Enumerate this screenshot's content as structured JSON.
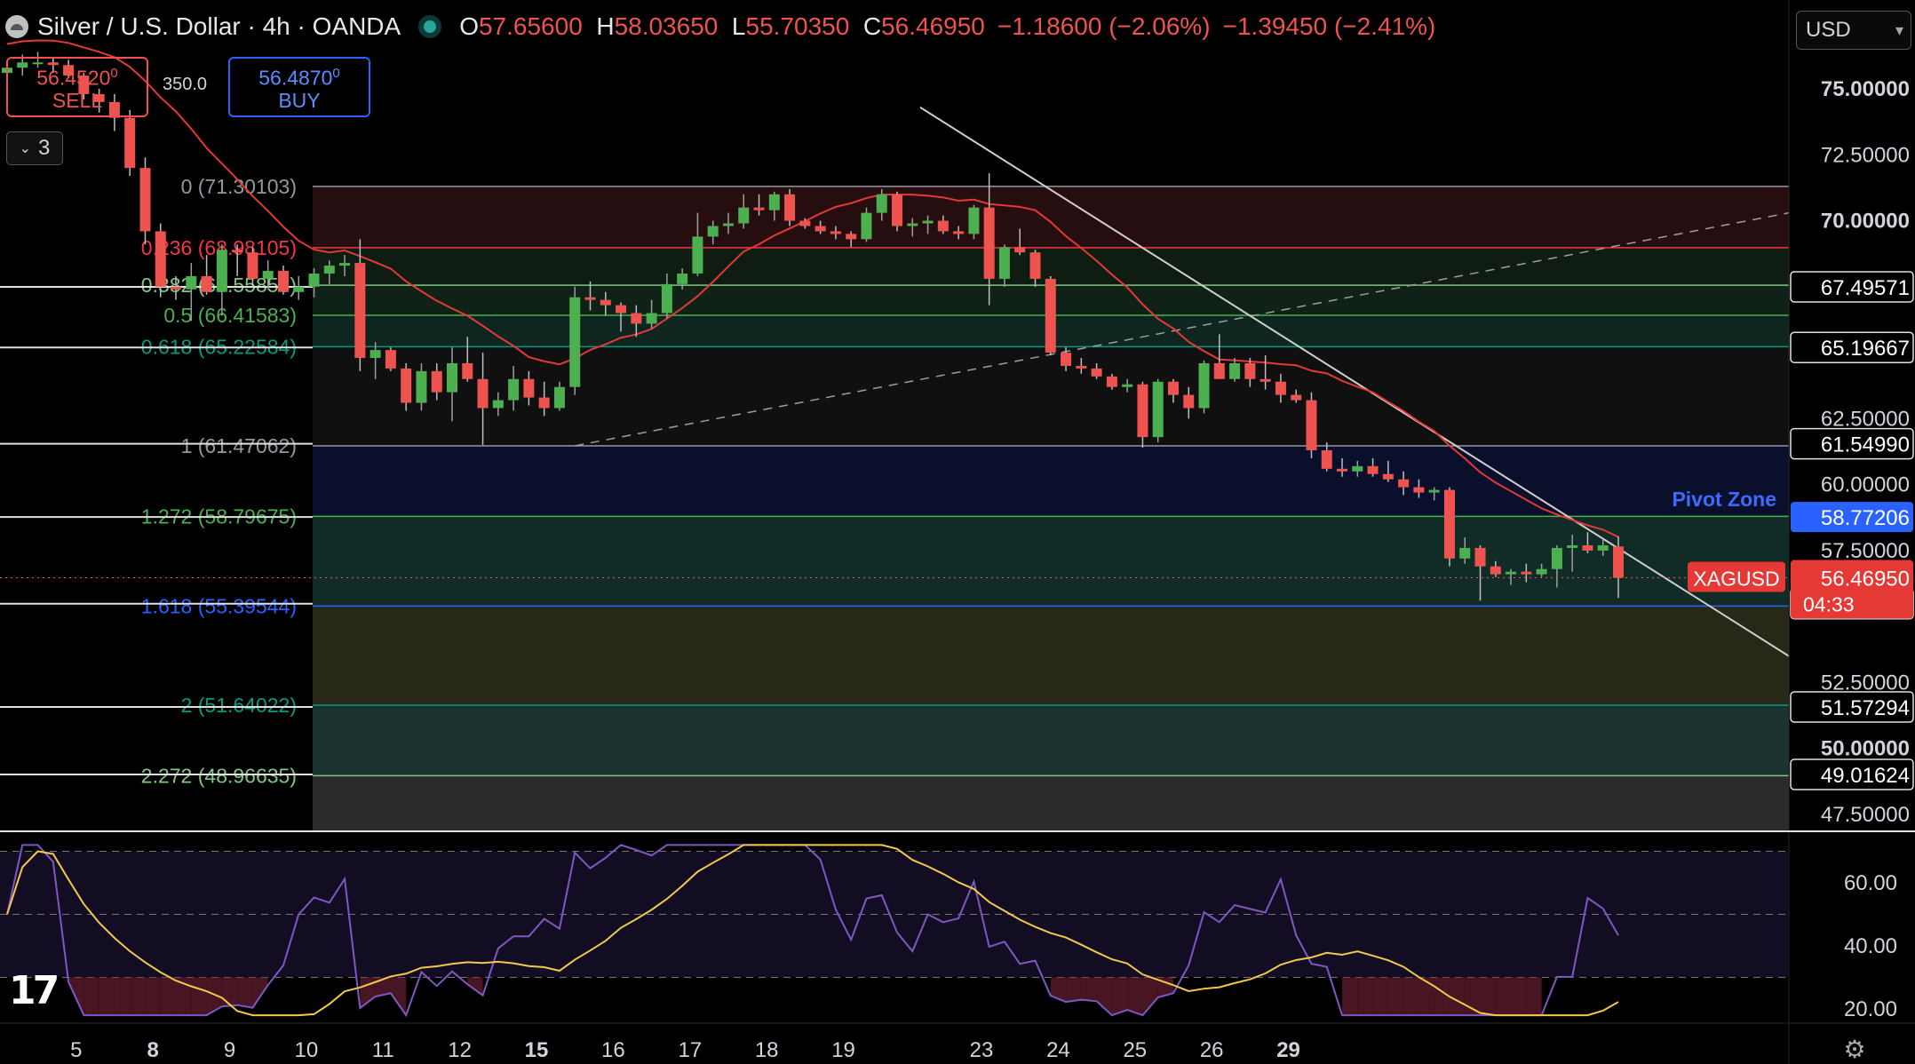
{
  "header": {
    "title": "Silver / U.S. Dollar · 4h · OANDA",
    "open": "57.65600",
    "high": "58.03650",
    "low": "55.70350",
    "close": "56.46950",
    "change": "−1.18600 (−2.06%)",
    "change2": "−1.39450 (−2.41%)"
  },
  "trade": {
    "sell_price": "56.4520",
    "sell_sup": "0",
    "sell_label": "SELL",
    "buy_price": "56.4870",
    "buy_sup": "0",
    "buy_label": "BUY",
    "spread": "350.0"
  },
  "collapse_count": "3",
  "currency": "USD",
  "colors": {
    "up": "#26a69a",
    "up_body": "#4caf50",
    "down": "#ef5350",
    "fib_line": "#c9c9c9",
    "ma": "#e53935",
    "rsi": "#7e57c2",
    "rsi_ma": "#f2c94c",
    "trend": "#cfcfcf"
  },
  "chart_data": {
    "type": "candlestick",
    "instrument": "XAGUSD",
    "last_price": "56.46950",
    "countdown": "04:33",
    "y_range": [
      46.0,
      77.0
    ],
    "y_ticks": [
      "75.00000",
      "72.50000",
      "70.00000",
      "62.50000",
      "60.00000",
      "57.50000",
      "52.50000",
      "50.00000",
      "47.50000"
    ],
    "y_tick_values": [
      75,
      72.5,
      70,
      62.5,
      60,
      57.5,
      52.5,
      50,
      47.5
    ],
    "level_labels": [
      {
        "label": "67.49571",
        "value": 67.49571
      },
      {
        "label": "65.19667",
        "value": 65.19667
      },
      {
        "label": "61.54990",
        "value": 61.5499
      },
      {
        "label": "58.77206",
        "value": 58.77206
      },
      {
        "label": "55.48382",
        "value": 55.48382
      },
      {
        "label": "51.57294",
        "value": 51.57294
      },
      {
        "label": "49.01624",
        "value": 49.01624
      }
    ],
    "fib_levels": [
      {
        "label": "0 (71.30103)",
        "value": 71.30103,
        "color": "#9598a1"
      },
      {
        "label": "0.236 (68.98105)",
        "value": 68.98105,
        "color": "#f23645"
      },
      {
        "label": "0.382 (67.55858)",
        "value": 67.55858,
        "color": "#81c784"
      },
      {
        "label": "0.5 (66.41583)",
        "value": 66.41583,
        "color": "#4caf50"
      },
      {
        "label": "0.618 (65.22584)",
        "value": 65.22584,
        "color": "#089981"
      },
      {
        "label": "1 (61.47062)",
        "value": 61.47062,
        "color": "#9598a1"
      },
      {
        "label": "1.272 (58.79675)",
        "value": 58.79675,
        "color": "#4caf50"
      },
      {
        "label": "1.618 (55.39544)",
        "value": 55.39544,
        "color": "#2962ff"
      },
      {
        "label": "2 (51.64022)",
        "value": 51.64022,
        "color": "#089981"
      },
      {
        "label": "2.272 (48.96635)",
        "value": 48.96635,
        "color": "#81c784"
      }
    ],
    "pivot_zone_label": "Pivot Zone",
    "x_labels": [
      "5",
      "8",
      "9",
      "10",
      "11",
      "12",
      "15",
      "16",
      "17",
      "18",
      "19",
      "23",
      "24",
      "25",
      "26",
      "29"
    ],
    "x_label_bold": [
      "8",
      "15",
      "29"
    ],
    "x_label_index": [
      4.5,
      9.5,
      14.5,
      19.5,
      24.5,
      29.5,
      34.5,
      39.5,
      44.5,
      49.5,
      54.5,
      63.5,
      68.5,
      73.5,
      78.5,
      83.5
    ],
    "candles": [
      [
        66.8,
        66.9,
        66.4,
        66.6
      ],
      [
        66.6,
        66.9,
        66.5,
        66.8
      ],
      [
        66.8,
        67.1,
        66.5,
        66.8
      ],
      [
        66.8,
        67.0,
        66.6,
        66.9
      ],
      [
        66.9,
        67.0,
        66.0,
        66.2
      ],
      [
        66.2,
        66.4,
        65.6,
        65.7
      ],
      [
        65.7,
        66.3,
        64.6,
        65.0
      ],
      [
        65.0,
        65.3,
        64.1,
        64.4
      ],
      [
        64.4,
        64.5,
        62.2,
        62.6
      ],
      [
        62.6,
        62.9,
        60.5,
        60.9
      ],
      [
        60.9,
        62.0,
        59.0,
        59.5
      ],
      [
        59.5,
        60.3,
        58.4,
        58.7
      ],
      [
        58.7,
        58.9,
        57.7,
        58.3
      ],
      [
        58.3,
        59.5,
        58.0,
        59.4
      ],
      [
        59.4,
        59.7,
        59.3,
        59.5
      ],
      [
        59.5,
        59.6,
        59.1,
        59.2
      ],
      [
        59.2,
        59.5,
        58.8,
        59.0
      ],
      [
        59.0,
        59.5,
        58.7,
        59.1
      ],
      [
        59.1,
        59.4,
        58.8,
        59.3
      ],
      [
        59.3,
        59.6,
        59.1,
        59.5
      ],
      [
        59.5,
        59.5,
        56.3,
        56.5
      ],
      [
        56.5,
        56.7,
        56.0,
        56.2
      ],
      [
        56.2,
        56.6,
        55.8,
        56.1
      ],
      [
        56.1,
        56.3,
        55.8,
        55.9
      ],
      [
        55.9,
        56.7,
        55.8,
        56.6
      ],
      [
        56.6,
        57.8,
        55.9,
        57.3
      ]
    ],
    "history_candles": [
      [
        75.6,
        75.9,
        75.2,
        75.8
      ],
      [
        75.8,
        76.3,
        75.5,
        76.0
      ],
      [
        76.0,
        76.4,
        75.8,
        76.0
      ],
      [
        76.0,
        76.2,
        75.6,
        75.9
      ],
      [
        75.9,
        76.1,
        75.4,
        75.5
      ],
      [
        75.5,
        75.6,
        74.6,
        74.8
      ],
      [
        74.8,
        75.0,
        74.1,
        74.5
      ],
      [
        74.5,
        74.8,
        73.4,
        73.9
      ],
      [
        73.9,
        74.2,
        71.7,
        72.0
      ],
      [
        72.0,
        72.4,
        69.1,
        69.6
      ],
      [
        69.6,
        69.9,
        67.1,
        67.5
      ],
      [
        67.5,
        67.9,
        67.0,
        67.4
      ],
      [
        67.4,
        68.4,
        66.2,
        67.9
      ],
      [
        67.9,
        68.7,
        67.2,
        67.3
      ],
      [
        67.3,
        69.1,
        66.4,
        68.9
      ],
      [
        68.9,
        69.1,
        67.9,
        68.8
      ],
      [
        68.8,
        69.0,
        67.5,
        67.8
      ],
      [
        67.8,
        68.5,
        67.4,
        68.1
      ],
      [
        68.1,
        68.3,
        67.2,
        67.3
      ],
      [
        67.3,
        67.9,
        67.0,
        67.5
      ],
      [
        67.5,
        68.2,
        67.1,
        68.0
      ],
      [
        68.0,
        68.5,
        67.6,
        68.3
      ],
      [
        68.3,
        68.7,
        67.9,
        68.4
      ],
      [
        68.4,
        69.3,
        64.3,
        64.8
      ],
      [
        64.8,
        65.4,
        64.0,
        65.1
      ],
      [
        65.1,
        65.2,
        64.3,
        64.4
      ],
      [
        64.4,
        64.6,
        62.8,
        63.1
      ],
      [
        63.1,
        64.6,
        62.8,
        64.3
      ],
      [
        64.3,
        64.6,
        63.2,
        63.5
      ],
      [
        63.5,
        65.2,
        62.4,
        64.6
      ],
      [
        64.6,
        65.6,
        63.9,
        64.0
      ],
      [
        64.0,
        65.0,
        61.5,
        62.9
      ],
      [
        62.9,
        63.5,
        62.6,
        63.2
      ],
      [
        63.2,
        64.5,
        62.8,
        64.0
      ],
      [
        64.0,
        64.3,
        63.0,
        63.3
      ],
      [
        63.3,
        63.9,
        62.6,
        62.9
      ],
      [
        62.9,
        63.9,
        62.8,
        63.7
      ],
      [
        63.7,
        67.5,
        63.4,
        67.1
      ],
      [
        67.1,
        67.7,
        66.6,
        67.0
      ],
      [
        67.0,
        67.3,
        66.4,
        66.8
      ],
      [
        66.8,
        66.9,
        65.8,
        66.5
      ],
      [
        66.5,
        66.8,
        65.6,
        66.1
      ],
      [
        66.1,
        67.0,
        65.9,
        66.5
      ],
      [
        66.5,
        68.0,
        66.3,
        67.6
      ],
      [
        67.6,
        68.2,
        67.4,
        68.0
      ],
      [
        68.0,
        70.3,
        67.9,
        69.4
      ],
      [
        69.4,
        70.0,
        69.1,
        69.8
      ],
      [
        69.8,
        70.3,
        69.5,
        69.9
      ],
      [
        69.9,
        71.0,
        69.7,
        70.5
      ],
      [
        70.5,
        71.0,
        70.2,
        70.4
      ],
      [
        70.4,
        71.1,
        70.0,
        71.0
      ],
      [
        71.0,
        71.2,
        69.8,
        70.0
      ],
      [
        70.0,
        70.1,
        69.7,
        69.8
      ],
      [
        69.8,
        70.0,
        69.5,
        69.6
      ],
      [
        69.6,
        69.8,
        69.3,
        69.5
      ],
      [
        69.5,
        69.6,
        69.0,
        69.3
      ],
      [
        69.3,
        70.5,
        69.2,
        70.3
      ],
      [
        70.3,
        71.2,
        70.0,
        71.0
      ],
      [
        71.0,
        71.1,
        69.6,
        69.8
      ],
      [
        69.8,
        70.1,
        69.4,
        69.9
      ],
      [
        69.9,
        70.2,
        69.5,
        70.0
      ],
      [
        70.0,
        70.2,
        69.5,
        69.6
      ],
      [
        69.6,
        69.8,
        69.3,
        69.5
      ],
      [
        69.5,
        70.6,
        69.3,
        70.5
      ],
      [
        70.5,
        71.8,
        66.8,
        67.8
      ],
      [
        67.8,
        69.1,
        67.5,
        69.0
      ],
      [
        69.0,
        69.7,
        68.7,
        68.8
      ],
      [
        68.8,
        68.9,
        67.5,
        67.8
      ],
      [
        67.8,
        67.9,
        64.9,
        65.0
      ],
      [
        65.0,
        65.2,
        64.3,
        64.5
      ],
      [
        64.5,
        64.8,
        64.2,
        64.4
      ],
      [
        64.4,
        64.6,
        64.0,
        64.1
      ],
      [
        64.1,
        64.2,
        63.6,
        63.7
      ],
      [
        63.7,
        64.0,
        63.5,
        63.8
      ],
      [
        63.8,
        63.9,
        61.4,
        61.8
      ],
      [
        61.8,
        64.0,
        61.6,
        63.9
      ],
      [
        63.9,
        64.0,
        63.1,
        63.4
      ],
      [
        63.4,
        63.7,
        62.5,
        62.9
      ],
      [
        62.9,
        64.7,
        62.7,
        64.6
      ],
      [
        64.6,
        65.7,
        64.2,
        64.0
      ],
      [
        64.0,
        64.8,
        63.9,
        64.6
      ],
      [
        64.6,
        64.8,
        63.7,
        64.0
      ],
      [
        64.0,
        64.9,
        63.6,
        63.9
      ],
      [
        63.9,
        64.2,
        63.1,
        63.4
      ],
      [
        63.4,
        63.6,
        63.1,
        63.2
      ],
      [
        63.2,
        63.5,
        61.0,
        61.3
      ],
      [
        61.3,
        61.6,
        60.5,
        60.6
      ],
      [
        60.6,
        61.0,
        60.3,
        60.5
      ],
      [
        60.5,
        60.9,
        60.3,
        60.7
      ],
      [
        60.7,
        61.0,
        60.3,
        60.4
      ],
      [
        60.4,
        60.9,
        60.1,
        60.2
      ],
      [
        60.2,
        60.5,
        59.6,
        59.9
      ],
      [
        59.9,
        60.2,
        59.5,
        59.7
      ],
      [
        59.7,
        59.9,
        59.4,
        59.8
      ],
      [
        59.8,
        59.9,
        56.9,
        57.2
      ],
      [
        57.2,
        58.0,
        57.0,
        57.6
      ],
      [
        57.6,
        57.7,
        55.6,
        56.9
      ],
      [
        56.9,
        57.1,
        56.5,
        56.6
      ],
      [
        56.6,
        56.8,
        56.2,
        56.7
      ],
      [
        56.7,
        57.0,
        56.3,
        56.6
      ],
      [
        56.6,
        57.0,
        56.5,
        56.8
      ],
      [
        56.8,
        57.7,
        56.1,
        57.6
      ],
      [
        57.6,
        58.1,
        56.7,
        57.7
      ],
      [
        57.7,
        58.2,
        57.4,
        57.5
      ],
      [
        57.5,
        57.9,
        57.3,
        57.7
      ],
      [
        57.656,
        58.0365,
        55.7035,
        56.4695
      ]
    ],
    "rsi_ticks": [
      "60.00",
      "40.00",
      "20.00"
    ],
    "rsi_tick_values": [
      60,
      40,
      20
    ],
    "rsi_range": [
      14,
      75
    ]
  }
}
